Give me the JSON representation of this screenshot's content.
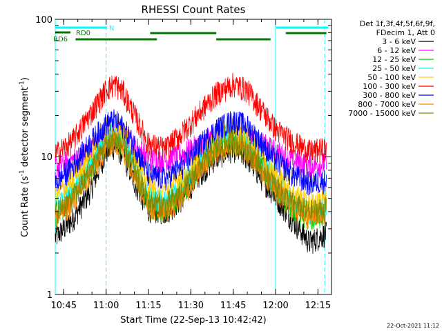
{
  "chart_data": {
    "type": "line",
    "title": "RHESSI Count Rates",
    "xlabel": "Start Time (22-Sep-13 10:42:42)",
    "ylabel_main": "Count Rate (s",
    "ylabel_sup1": "-1",
    "ylabel_mid": " detector segment",
    "ylabel_sup2": "-1",
    "ylabel_end": ")",
    "y_scale": "log",
    "ylim": [
      1,
      100
    ],
    "xlim_minutes": [
      10.7,
      12.33
    ],
    "x_ticks": [
      {
        "label": "10:45",
        "value": 10.75
      },
      {
        "label": "11:00",
        "value": 11.0
      },
      {
        "label": "11:15",
        "value": 11.25
      },
      {
        "label": "11:30",
        "value": 11.5
      },
      {
        "label": "11:45",
        "value": 11.75
      },
      {
        "label": "12:00",
        "value": 12.0
      },
      {
        "label": "12:15",
        "value": 12.25
      }
    ],
    "y_ticks": [
      {
        "label": "1",
        "value": 1
      },
      {
        "label": "10",
        "value": 10
      },
      {
        "label": "100",
        "value": 100
      }
    ],
    "legend_header": [
      "Det 1f,3f,4f,5f,6f,9f,",
      "FDecim 1, Att 0"
    ],
    "legend_position": "right",
    "series": [
      {
        "name": "3 - 6 keV",
        "color": "#000000",
        "points": [
          [
            10.7,
            2.6
          ],
          [
            10.8,
            3.5
          ],
          [
            10.9,
            5.5
          ],
          [
            11.0,
            11.0
          ],
          [
            11.05,
            12.0
          ],
          [
            11.1,
            10.5
          ],
          [
            11.17,
            6.5
          ],
          [
            11.25,
            4.2
          ],
          [
            11.35,
            4.0
          ],
          [
            11.45,
            5.0
          ],
          [
            11.55,
            7.5
          ],
          [
            11.65,
            10.0
          ],
          [
            11.75,
            11.5
          ],
          [
            11.83,
            10.0
          ],
          [
            11.92,
            7.0
          ],
          [
            12.0,
            5.2
          ],
          [
            12.1,
            3.5
          ],
          [
            12.2,
            2.4
          ],
          [
            12.3,
            2.8
          ]
        ]
      },
      {
        "name": "6 - 12 keV",
        "color": "#ff00ff",
        "points": [
          [
            10.7,
            8.5
          ],
          [
            10.8,
            9.5
          ],
          [
            10.9,
            11.0
          ],
          [
            11.0,
            14.0
          ],
          [
            11.05,
            15.0
          ],
          [
            11.1,
            14.5
          ],
          [
            11.17,
            12.0
          ],
          [
            11.25,
            10.0
          ],
          [
            11.35,
            9.5
          ],
          [
            11.45,
            10.5
          ],
          [
            11.55,
            12.5
          ],
          [
            11.65,
            14.0
          ],
          [
            11.75,
            14.5
          ],
          [
            11.83,
            14.0
          ],
          [
            11.92,
            12.5
          ],
          [
            12.0,
            11.0
          ],
          [
            12.1,
            9.5
          ],
          [
            12.2,
            8.8
          ],
          [
            12.3,
            9.0
          ]
        ]
      },
      {
        "name": "12 - 25 keV",
        "color": "#00cc00",
        "points": [
          [
            10.7,
            3.8
          ],
          [
            10.8,
            5.0
          ],
          [
            10.9,
            8.0
          ],
          [
            11.0,
            13.0
          ],
          [
            11.05,
            14.5
          ],
          [
            11.1,
            12.5
          ],
          [
            11.17,
            8.0
          ],
          [
            11.25,
            4.5
          ],
          [
            11.35,
            4.2
          ],
          [
            11.45,
            5.5
          ],
          [
            11.55,
            8.5
          ],
          [
            11.65,
            12.0
          ],
          [
            11.75,
            13.5
          ],
          [
            11.83,
            12.0
          ],
          [
            11.92,
            8.5
          ],
          [
            12.0,
            6.0
          ],
          [
            12.1,
            4.2
          ],
          [
            12.2,
            3.6
          ],
          [
            12.3,
            3.9
          ]
        ]
      },
      {
        "name": "25 - 50 keV",
        "color": "#00ffff",
        "points": [
          [
            10.7,
            4.2
          ],
          [
            10.8,
            5.5
          ],
          [
            10.9,
            8.8
          ],
          [
            11.0,
            14.5
          ],
          [
            11.05,
            16.0
          ],
          [
            11.1,
            14.0
          ],
          [
            11.17,
            9.0
          ],
          [
            11.25,
            5.2
          ],
          [
            11.35,
            4.8
          ],
          [
            11.45,
            6.2
          ],
          [
            11.55,
            9.5
          ],
          [
            11.65,
            13.5
          ],
          [
            11.75,
            15.5
          ],
          [
            11.83,
            13.5
          ],
          [
            11.92,
            9.5
          ],
          [
            12.0,
            6.8
          ],
          [
            12.1,
            4.8
          ],
          [
            12.2,
            4.0
          ],
          [
            12.3,
            4.3
          ]
        ]
      },
      {
        "name": "50 - 100 keV",
        "color": "#ffcc00",
        "points": [
          [
            10.7,
            5.2
          ],
          [
            10.8,
            6.8
          ],
          [
            10.9,
            10.5
          ],
          [
            11.0,
            16.5
          ],
          [
            11.05,
            18.0
          ],
          [
            11.1,
            15.5
          ],
          [
            11.17,
            10.5
          ],
          [
            11.25,
            6.2
          ],
          [
            11.35,
            5.8
          ],
          [
            11.45,
            7.2
          ],
          [
            11.55,
            10.5
          ],
          [
            11.65,
            14.5
          ],
          [
            11.75,
            16.5
          ],
          [
            11.83,
            14.5
          ],
          [
            11.92,
            10.5
          ],
          [
            12.0,
            7.5
          ],
          [
            12.1,
            5.5
          ],
          [
            12.2,
            4.6
          ],
          [
            12.3,
            5.0
          ]
        ]
      },
      {
        "name": "100 - 300 keV",
        "color": "#ff0000",
        "points": [
          [
            10.7,
            10.5
          ],
          [
            10.8,
            13.0
          ],
          [
            10.9,
            20.0
          ],
          [
            11.0,
            31.0
          ],
          [
            11.05,
            34.0
          ],
          [
            11.1,
            30.0
          ],
          [
            11.17,
            20.0
          ],
          [
            11.25,
            12.5
          ],
          [
            11.35,
            11.5
          ],
          [
            11.45,
            15.0
          ],
          [
            11.55,
            21.0
          ],
          [
            11.65,
            29.0
          ],
          [
            11.75,
            34.0
          ],
          [
            11.83,
            31.0
          ],
          [
            11.92,
            22.0
          ],
          [
            12.0,
            16.0
          ],
          [
            12.1,
            13.0
          ],
          [
            12.2,
            11.0
          ],
          [
            12.3,
            11.5
          ]
        ]
      },
      {
        "name": "300 - 800 keV",
        "color": "#0000ff",
        "points": [
          [
            10.7,
            6.5
          ],
          [
            10.8,
            8.5
          ],
          [
            10.9,
            12.5
          ],
          [
            11.0,
            17.5
          ],
          [
            11.05,
            18.5
          ],
          [
            11.1,
            16.5
          ],
          [
            11.17,
            12.0
          ],
          [
            11.25,
            7.5
          ],
          [
            11.35,
            7.0
          ],
          [
            11.45,
            8.5
          ],
          [
            11.55,
            12.0
          ],
          [
            11.65,
            16.0
          ],
          [
            11.75,
            18.5
          ],
          [
            11.83,
            17.0
          ],
          [
            11.92,
            12.5
          ],
          [
            12.0,
            9.5
          ],
          [
            12.1,
            7.5
          ],
          [
            12.2,
            6.5
          ],
          [
            12.3,
            6.8
          ]
        ]
      },
      {
        "name": "800 - 7000 keV",
        "color": "#ff8800",
        "points": [
          [
            10.7,
            3.6
          ],
          [
            10.8,
            4.6
          ],
          [
            10.9,
            7.2
          ],
          [
            11.0,
            12.0
          ],
          [
            11.05,
            13.0
          ],
          [
            11.1,
            11.5
          ],
          [
            11.17,
            7.5
          ],
          [
            11.25,
            4.4
          ],
          [
            11.35,
            4.1
          ],
          [
            11.45,
            5.2
          ],
          [
            11.55,
            8.0
          ],
          [
            11.65,
            11.0
          ],
          [
            11.75,
            12.5
          ],
          [
            11.83,
            11.0
          ],
          [
            11.92,
            8.0
          ],
          [
            12.0,
            5.8
          ],
          [
            12.1,
            4.3
          ],
          [
            12.2,
            3.7
          ],
          [
            12.3,
            4.0
          ]
        ]
      },
      {
        "name": "7000 - 15000 keV",
        "color": "#888800",
        "points": [
          [
            10.7,
            4.0
          ],
          [
            10.8,
            5.0
          ],
          [
            10.9,
            7.8
          ],
          [
            11.0,
            12.5
          ],
          [
            11.05,
            13.5
          ],
          [
            11.1,
            12.0
          ],
          [
            11.17,
            8.0
          ],
          [
            11.25,
            4.8
          ],
          [
            11.35,
            4.5
          ],
          [
            11.45,
            5.6
          ],
          [
            11.55,
            8.5
          ],
          [
            11.65,
            11.5
          ],
          [
            11.75,
            13.0
          ],
          [
            11.83,
            11.5
          ],
          [
            11.92,
            8.5
          ],
          [
            12.0,
            6.2
          ],
          [
            12.1,
            4.6
          ],
          [
            12.2,
            4.0
          ],
          [
            12.3,
            4.3
          ]
        ]
      }
    ],
    "segments": [
      {
        "label": "N",
        "color": "#00ffff",
        "ranges": [
          [
            10.7,
            11.005
          ],
          [
            12.005,
            12.31
          ]
        ]
      },
      {
        "label": "RD0",
        "color": "#007700",
        "ranges": [
          [
            10.7,
            10.79
          ]
        ]
      },
      {
        "label": "RD6",
        "color": "#007700",
        "ranges": [
          [
            10.82,
            11.3
          ],
          [
            11.26,
            11.65
          ],
          [
            11.65,
            11.97
          ],
          [
            12.06,
            12.3
          ]
        ]
      }
    ],
    "vertical_lines": [
      {
        "x": 10.7,
        "color": "#00ffff",
        "style": "solid"
      },
      {
        "x": 11.0,
        "color": "#00ffff",
        "style": "dashed"
      },
      {
        "x": 12.0,
        "color": "#00ffff",
        "style": "solid"
      },
      {
        "x": 12.29,
        "color": "#00ffff",
        "style": "dashed"
      }
    ]
  },
  "footer_timestamp": "22-Oct-2021 11:12"
}
